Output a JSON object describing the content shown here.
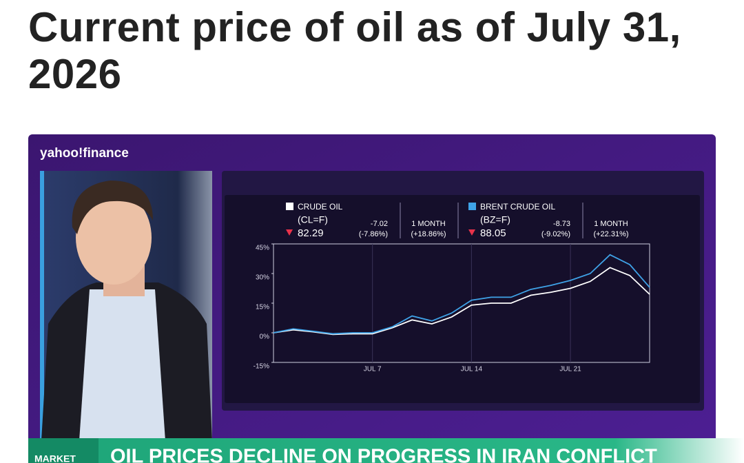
{
  "header": {
    "title": "Current price of oil as of July 31, 2026"
  },
  "video": {
    "brand": "yahoo!finance",
    "banner_tag": "MARKET",
    "banner": "OIL PRICES DECLINE ON PROGRESS IN IRAN CONFLICT"
  },
  "chart_data": {
    "type": "line",
    "categories": [
      null,
      null,
      null,
      null,
      null,
      "JUL 7",
      null,
      null,
      null,
      null,
      "JUL 14",
      null,
      null,
      null,
      null,
      "JUL 21",
      null,
      null,
      null,
      null
    ],
    "series": [
      {
        "name": "CRUDE OIL",
        "symbol": "(CL=F)",
        "price": 82.29,
        "change": -7.02,
        "change_pct": "(-7.86%)",
        "period": "1 MONTH",
        "period_change": "(+18.86%)",
        "color": "#ffffff",
        "values": [
          0,
          1.5,
          0.5,
          -0.8,
          -0.5,
          -0.5,
          2.5,
          6.5,
          4.5,
          8,
          14,
          15,
          15,
          19,
          20.5,
          22.5,
          26,
          33,
          29,
          19.5
        ]
      },
      {
        "name": "BRENT CRUDE OIL",
        "symbol": "(BZ=F)",
        "price": 88.05,
        "change": -8.73,
        "change_pct": "(-9.02%)",
        "period": "1 MONTH",
        "period_change": "(+22.31%)",
        "color": "#3fa3e8",
        "values": [
          0,
          2,
          0.8,
          -0.5,
          0,
          0,
          3,
          8.5,
          6,
          10,
          16.5,
          18,
          18,
          22,
          24,
          26.5,
          30,
          39.5,
          34.5,
          23
        ]
      }
    ],
    "ylim": [
      -15,
      45
    ],
    "yticks": [
      {
        "value": 45,
        "label": "45%"
      },
      {
        "value": 30,
        "label": "30%"
      },
      {
        "value": 15,
        "label": "15%"
      },
      {
        "value": 0,
        "label": "0%"
      },
      {
        "value": -15,
        "label": "-15%"
      }
    ]
  }
}
